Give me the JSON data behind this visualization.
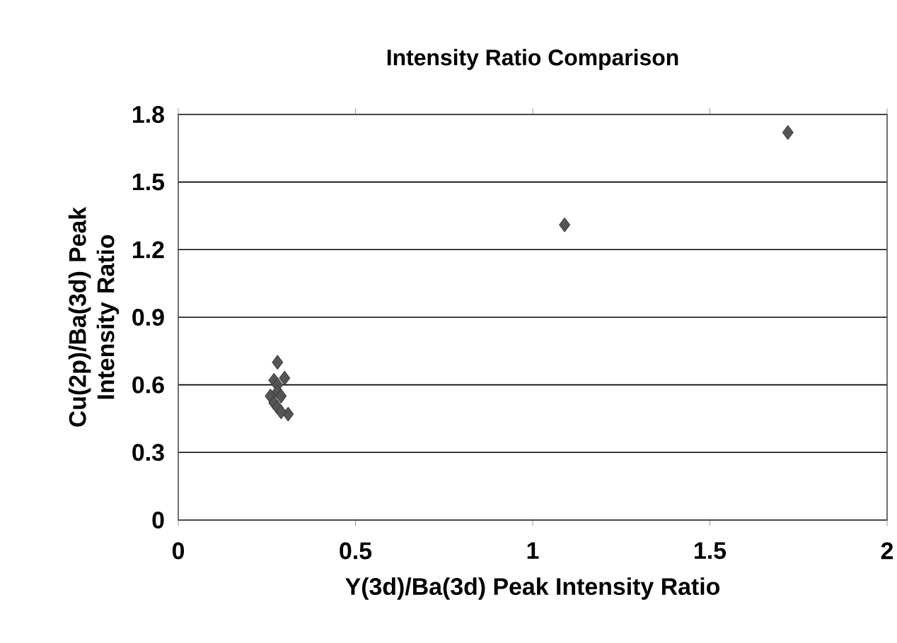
{
  "chart_data": {
    "type": "scatter",
    "title": "Intensity Ratio Comparison",
    "xlabel": "Y(3d)/Ba(3d) Peak Intensity Ratio",
    "ylabel": "Cu(2p)/Ba(3d) Peak Intensity Ratio",
    "xlim": [
      0,
      2
    ],
    "ylim": [
      0,
      1.8
    ],
    "xticks": [
      0,
      0.5,
      1,
      1.5,
      2
    ],
    "yticks": [
      0,
      0.3,
      0.6,
      0.9,
      1.2,
      1.5,
      1.8
    ],
    "grid": "y",
    "marker": "diamond",
    "series": [
      {
        "color": "#555555",
        "x": [
          0.28,
          0.27,
          0.3,
          0.28,
          0.26,
          0.28,
          0.29,
          0.27,
          0.28,
          0.31,
          0.29,
          1.09,
          1.72
        ],
        "values": [
          0.7,
          0.62,
          0.63,
          0.6,
          0.55,
          0.57,
          0.55,
          0.52,
          0.5,
          0.47,
          0.48,
          1.31,
          1.72
        ]
      }
    ]
  }
}
